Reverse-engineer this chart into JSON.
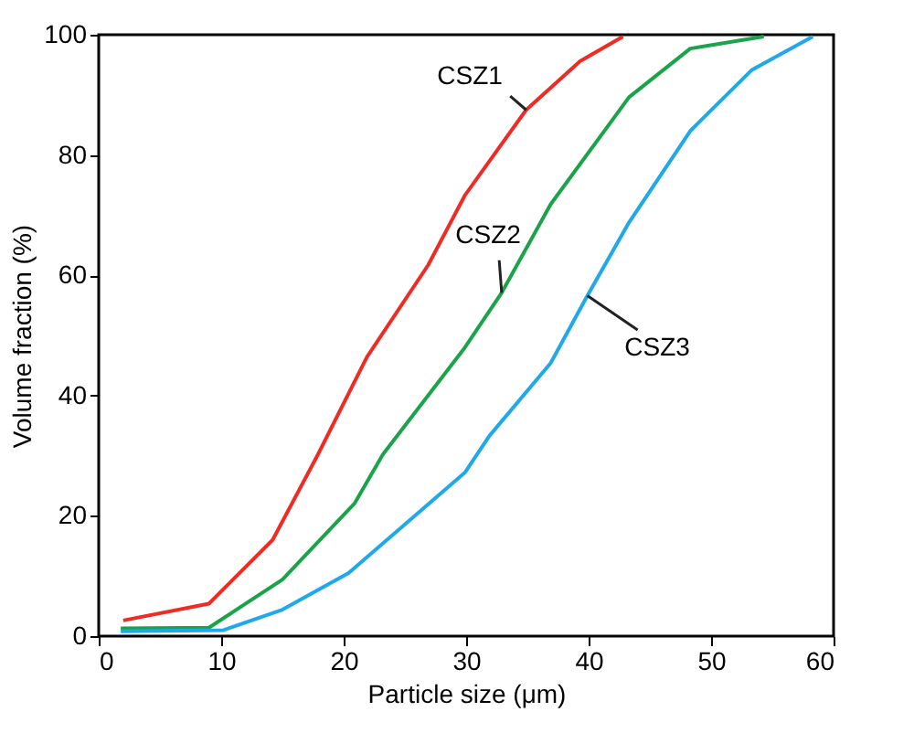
{
  "chart_data": {
    "type": "line",
    "xlabel": "Particle size (μm)",
    "ylabel": "Volume fraction (%)",
    "xlim": [
      0,
      60
    ],
    "xticks": [
      0,
      10,
      20,
      30,
      40,
      50,
      60
    ],
    "ylim": [
      0,
      100
    ],
    "yticks": [
      0,
      20,
      40,
      60,
      80,
      100
    ],
    "grid": false,
    "legend": false,
    "marker": "none",
    "line_style": "solid",
    "series": [
      {
        "name": "CSZ1",
        "color": "#ee2b24",
        "x": [
          2.0,
          9.0,
          14.2,
          17.9,
          21.9,
          26.9,
          29.9,
          34.9,
          39.3,
          42.8
        ],
        "values": [
          2.6,
          5.4,
          16.0,
          30.2,
          46.4,
          61.7,
          73.3,
          87.5,
          95.6,
          99.7
        ]
      },
      {
        "name": "CSZ2",
        "color": "#1ba34a",
        "x": [
          1.8,
          9.0,
          15.0,
          20.9,
          23.2,
          29.9,
          32.9,
          36.9,
          43.3,
          48.3,
          54.3
        ],
        "values": [
          1.3,
          1.4,
          9.4,
          22.1,
          30.2,
          48.0,
          57.1,
          71.8,
          89.6,
          97.7,
          99.7
        ]
      },
      {
        "name": "CSZ3",
        "color": "#1fa9e8",
        "x": [
          1.8,
          10.2,
          15.0,
          20.4,
          29.9,
          31.9,
          36.9,
          39.9,
          43.3,
          48.3,
          53.3,
          58.3
        ],
        "values": [
          0.8,
          1.0,
          4.4,
          10.5,
          27.2,
          33.3,
          45.4,
          56.6,
          68.8,
          84.0,
          94.1,
          99.7
        ]
      }
    ]
  }
}
